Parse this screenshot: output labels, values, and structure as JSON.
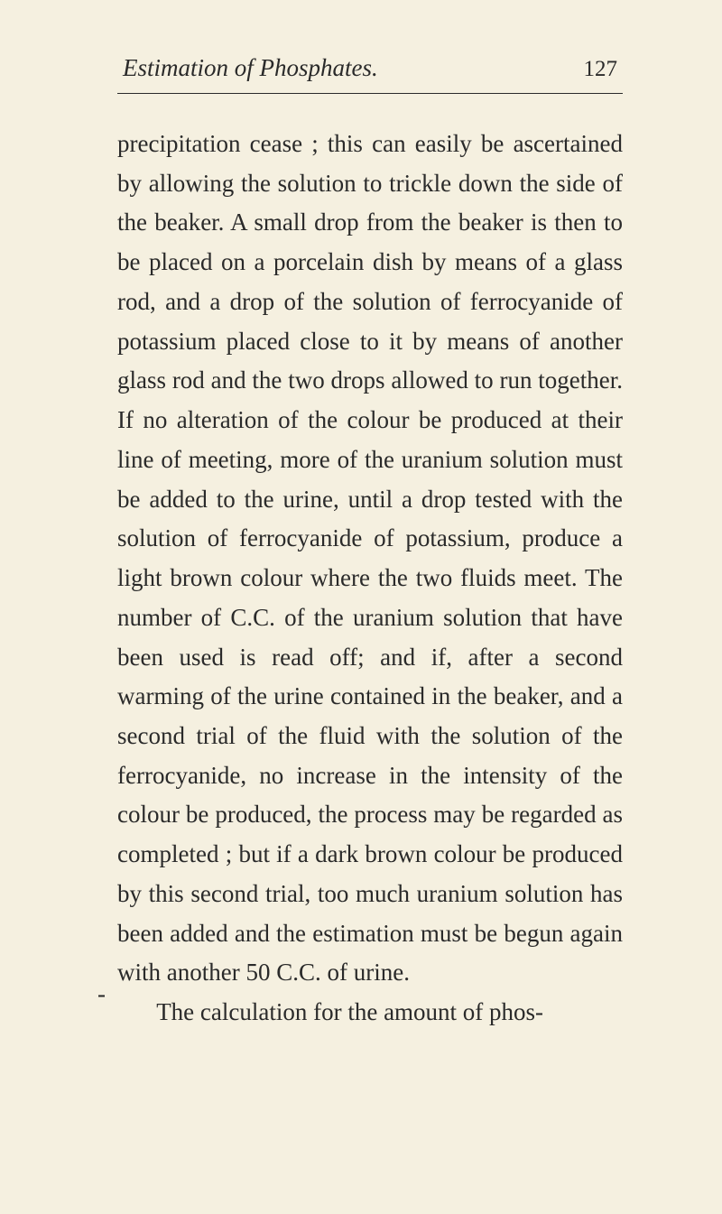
{
  "header": {
    "title": "Estimation of Phosphates.",
    "page_number": "127"
  },
  "body": {
    "p1": "precipitation cease ; this can easily be ascer­tained by allowing the solution to trickle down the side of the beaker. A small drop from the beaker is then to be placed on a porcelain dish by means of a glass rod, and a drop of the solution of ferrocyanide of potassium placed close to it by means of another glass rod and the two drops allowed to run together. If no alteration of the colour be produced at their line of meeting, more of the uranium solution must be added to the urine, until a drop tested with the solution of ferrocyanide of potassium, pro­duce a light brown colour where the two fluids meet. The number of C.C. of the uranium solution that have been used is read off; and if, after a second warming of the urine contained in the beaker, and a second trial of the fluid with the solution of the ferrocyanide, no increase in the intensity of the colour be produced, the process may be regarded as completed ; but if a dark brown colour be produced by this second trial, too much uranium solution has been added and the estimation must be begun again with another 50 C.C. of urine.",
    "p2": "The calculation for the amount of phos-"
  },
  "margin_mark": "-",
  "style": {
    "background_color": "#f5f0e0",
    "text_color": "#2a2a2a",
    "body_fontsize": 27,
    "header_fontsize": 27,
    "line_height": 1.62,
    "rule_width": 1.5
  }
}
